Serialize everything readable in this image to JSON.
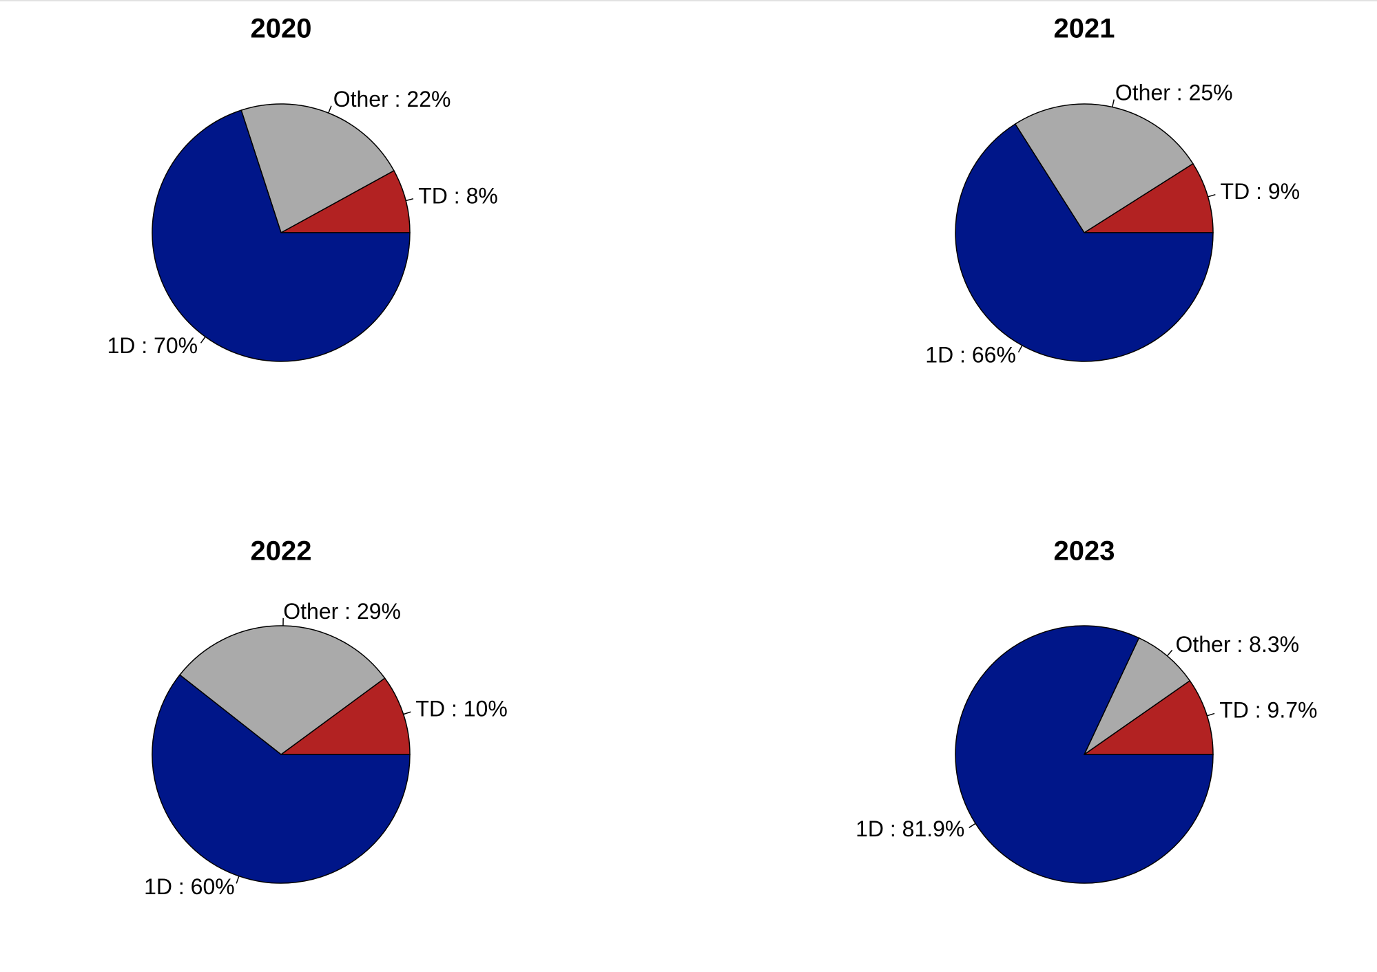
{
  "chart_data": [
    {
      "type": "pie",
      "title": "2020",
      "slices": [
        {
          "name": "TD",
          "value": 8,
          "label": "TD :  8%",
          "color": "#b22222"
        },
        {
          "name": "Other",
          "value": 22,
          "label": "Other :  22%",
          "color": "#aaaaaa"
        },
        {
          "name": "1D",
          "value": 70,
          "label": "1D :  70%",
          "color": "#001689"
        }
      ]
    },
    {
      "type": "pie",
      "title": "2021",
      "slices": [
        {
          "name": "TD",
          "value": 9,
          "label": "TD :  9%",
          "color": "#b22222"
        },
        {
          "name": "Other",
          "value": 25,
          "label": "Other :  25%",
          "color": "#aaaaaa"
        },
        {
          "name": "1D",
          "value": 66,
          "label": "1D :  66%",
          "color": "#001689"
        }
      ]
    },
    {
      "type": "pie",
      "title": "2022",
      "slices": [
        {
          "name": "TD",
          "value": 10,
          "label": "TD :  10%",
          "color": "#b22222"
        },
        {
          "name": "Other",
          "value": 29,
          "label": "Other :  29%",
          "color": "#aaaaaa"
        },
        {
          "name": "1D",
          "value": 60,
          "label": "1D :  60%",
          "color": "#001689"
        }
      ]
    },
    {
      "type": "pie",
      "title": "2023",
      "slices": [
        {
          "name": "TD",
          "value": 9.7,
          "label": "TD :  9.7%",
          "color": "#b22222"
        },
        {
          "name": "Other",
          "value": 8.3,
          "label": "Other :  8.3%",
          "color": "#aaaaaa"
        },
        {
          "name": "1D",
          "value": 81.9,
          "label": "1D :  81.9%",
          "color": "#001689"
        }
      ]
    }
  ]
}
